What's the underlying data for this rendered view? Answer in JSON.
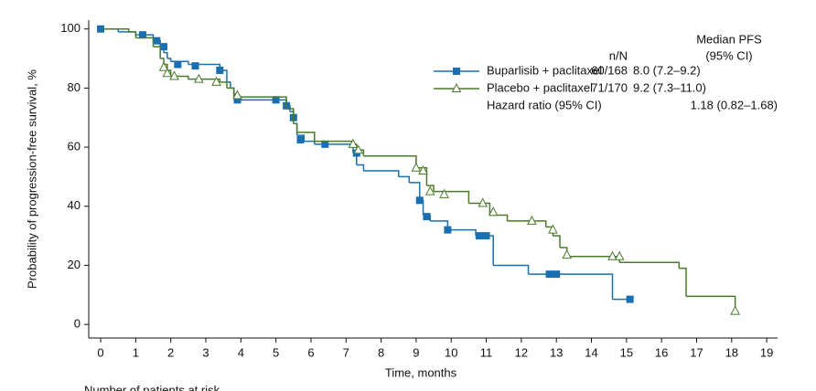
{
  "chart_data": {
    "type": "km",
    "x_label": "Time, months",
    "y_label": "Probability of progression-free survival, %",
    "footer": "Number of patients at risk",
    "xlim": [
      -0.34,
      19.31
    ],
    "ylim": [
      -4.6,
      103
    ],
    "xticks": [
      0,
      1,
      2,
      3,
      4,
      5,
      6,
      7,
      8,
      9,
      10,
      11,
      12,
      13,
      14,
      15,
      16,
      17,
      18,
      19
    ],
    "yticks": [
      0,
      20,
      40,
      60,
      80,
      100
    ],
    "legend_header": {
      "n_N": "n/N",
      "median": "Median PFS",
      "ci": "(95% CI)"
    },
    "hazard_ratio": {
      "label": "Hazard ratio (95% CI)",
      "value": "1.18 (0.82–1.68)"
    },
    "series": [
      {
        "name": "Buparlisib + paclitaxel",
        "n_N": "60/168",
        "median": "8.0 (7.2–9.2)",
        "color": "#1a6fb0",
        "marker": "square",
        "x": [
          0,
          0.5,
          1,
          1.5,
          1.7,
          1.8,
          1.9,
          2,
          2.5,
          3.4,
          3.6,
          3.7,
          3.8,
          3.9,
          5.3,
          5.4,
          5.5,
          5.6,
          5.8,
          6.1,
          7.2,
          7.3,
          7.5,
          8.5,
          8.8,
          9.1,
          9.2,
          9.4,
          9.9,
          10.7,
          11.2,
          12.2,
          14.6,
          15.1
        ],
        "values": [
          100,
          99,
          98,
          96,
          94,
          92,
          90,
          89,
          88,
          86,
          82,
          80,
          78,
          76,
          74,
          72,
          68,
          64,
          62,
          61,
          58,
          54,
          52,
          50,
          48,
          42,
          37,
          35,
          32,
          30,
          20,
          17,
          8.5,
          8.5
        ],
        "censor_x": [
          0,
          1.2,
          1.6,
          1.8,
          2.2,
          2.7,
          3.4,
          3.9,
          5,
          5.3,
          5.5,
          5.7,
          6.4,
          7.3,
          9.1,
          9.3,
          9.9,
          10.8,
          11,
          12.8,
          13,
          15.1
        ],
        "censor_y": [
          100,
          98,
          96,
          94,
          88,
          87.5,
          86,
          76,
          76,
          74,
          70,
          62.5,
          61,
          58,
          42,
          36.5,
          32,
          30,
          30,
          17,
          17,
          8.5
        ]
      },
      {
        "name": "Placebo + paclitaxel",
        "n_N": "71/170",
        "median": "9.2 (7.3–11.0)",
        "color": "#4a7a2a",
        "marker": "triangle",
        "x": [
          0,
          0.8,
          1,
          1.5,
          1.7,
          1.8,
          1.9,
          2,
          2.5,
          3.4,
          3.6,
          3.8,
          5.3,
          5.5,
          5.6,
          6.1,
          7.2,
          7.3,
          7.5,
          9.0,
          9.3,
          9.5,
          10.5,
          11.1,
          11.6,
          12.7,
          12.9,
          13.1,
          13.3,
          14.8,
          16.5,
          16.7,
          18.1
        ],
        "values": [
          100,
          99,
          97,
          94,
          90,
          88,
          86,
          84,
          83,
          82,
          80,
          77,
          73,
          68,
          65,
          62,
          61,
          59,
          57,
          53,
          47,
          45,
          41,
          37,
          35,
          33,
          30,
          26,
          23,
          21,
          19,
          9.5,
          5
        ],
        "censor_x": [
          1.8,
          1.9,
          2.1,
          2.8,
          3.3,
          3.9,
          7.2,
          7.35,
          9.0,
          9.2,
          9.4,
          9.8,
          10.9,
          11.2,
          12.3,
          12.9,
          13.3,
          14.6,
          14.8,
          18.1
        ],
        "censor_y": [
          87,
          85,
          84,
          83,
          82,
          77.5,
          61,
          59,
          53,
          52,
          45,
          44,
          41,
          38,
          35,
          32,
          23.5,
          23,
          23,
          4.5
        ]
      }
    ]
  }
}
